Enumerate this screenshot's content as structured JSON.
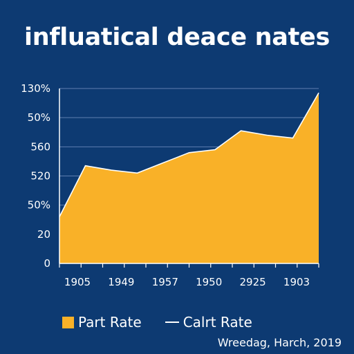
{
  "chart_data": {
    "type": "area",
    "title": "influatical deace nates",
    "y_ticks": [
      "0",
      "20",
      "50%",
      "520",
      "560",
      "50%",
      "130%"
    ],
    "x_ticks": [
      "1905",
      "1949",
      "1957",
      "1950",
      "2925",
      "1903"
    ],
    "series": [
      {
        "name": "Part Rate",
        "values": [
          1.6,
          3.35,
          3.2,
          3.1,
          3.45,
          3.8,
          3.9,
          4.55,
          4.4,
          4.3,
          5.85
        ]
      }
    ],
    "legend": [
      "Part Rate",
      "Calrt Rate"
    ],
    "legend_position": "bottom",
    "grid": true,
    "footnote": "Wreedag, Harch, 2019"
  },
  "colors": {
    "background": "#0d3a72",
    "area_fill": "#f9b128",
    "area_line": "#ffffff",
    "grid": "#5e7fb0",
    "axis": "#ffffff",
    "legend_line": "#ffffff"
  }
}
